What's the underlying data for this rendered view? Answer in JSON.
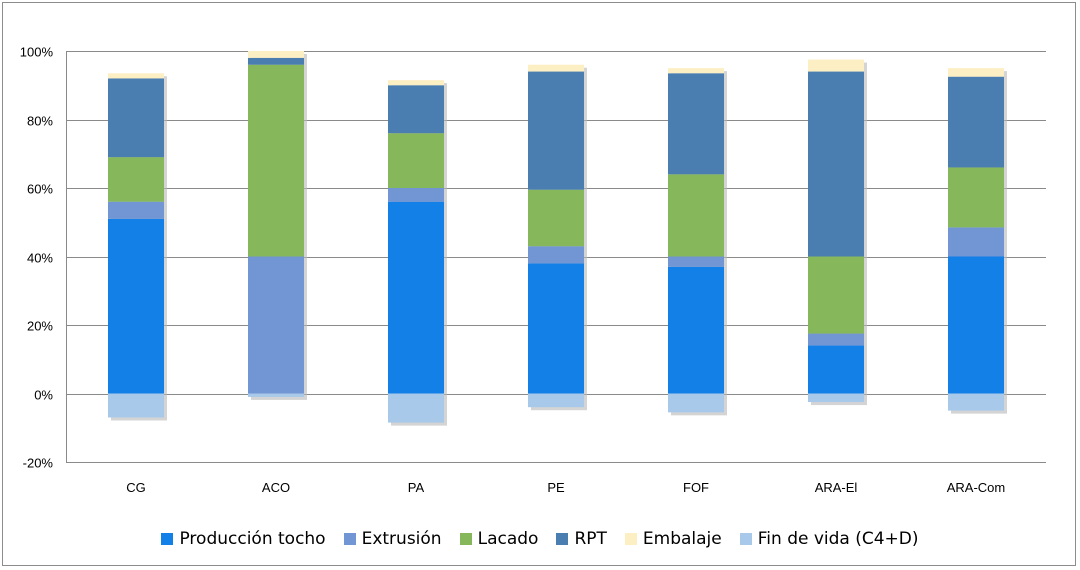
{
  "chart_data": {
    "type": "bar",
    "stacked": true,
    "categories": [
      "CG",
      "ACO",
      "PA",
      "PE",
      "FOF",
      "ARA-El",
      "ARA-Com"
    ],
    "ylim": [
      -20,
      100
    ],
    "yticks": [
      -20,
      0,
      20,
      40,
      60,
      80,
      100
    ],
    "ytick_labels": [
      "-20%",
      "0%",
      "20%",
      "40%",
      "60%",
      "80%",
      "100%"
    ],
    "grid": true,
    "legend_position": "bottom",
    "title": "",
    "xlabel": "",
    "ylabel": "",
    "series": [
      {
        "name": "Producción tocho",
        "color": "#1380e8",
        "values": [
          51,
          0,
          56,
          38,
          37,
          14,
          40
        ]
      },
      {
        "name": "Extrusión",
        "color": "#7295d3",
        "values": [
          5,
          40,
          4,
          5,
          3,
          3.5,
          8.5
        ]
      },
      {
        "name": "Lacado",
        "color": "#86b75a",
        "values": [
          13,
          56,
          16,
          16.5,
          24,
          22.5,
          17.5
        ]
      },
      {
        "name": "RPT",
        "color": "#4a7eb0",
        "values": [
          23,
          2,
          14,
          34.5,
          29.5,
          54,
          26.5
        ]
      },
      {
        "name": "Embalaje",
        "color": "#fdefc4",
        "values": [
          1.5,
          2,
          1.5,
          2,
          1.5,
          3.5,
          2.5
        ]
      },
      {
        "name": "Fin de vida (C4+D)",
        "color": "#a9c9ea",
        "values": [
          -7,
          -1,
          -8.5,
          -4,
          -5.5,
          -2.5,
          -5
        ]
      }
    ]
  }
}
